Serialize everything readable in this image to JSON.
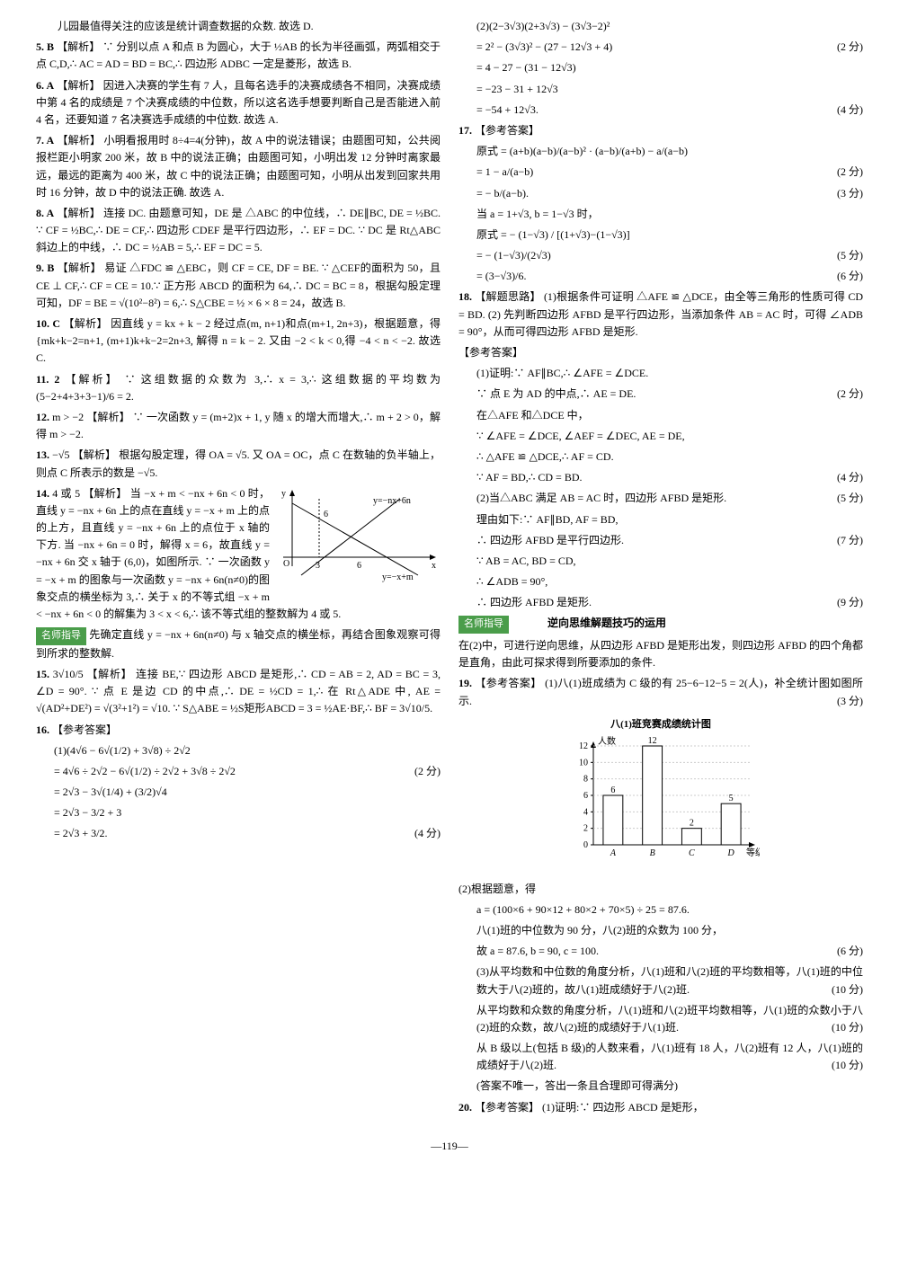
{
  "pageNumber": "—119—",
  "left": {
    "intro": "儿园最值得关注的应该是统计调查数据的众数. 故选 D.",
    "q5": {
      "num": "5. B",
      "label": "【解析】",
      "text": "∵ 分别以点 A 和点 B 为圆心，大于 ½AB 的长为半径画弧，两弧相交于点 C,D,∴ AC = AD = BD = BC,∴ 四边形 ADBC 一定是菱形，故选 B."
    },
    "q6": {
      "num": "6. A",
      "label": "【解析】",
      "text": "因进入决赛的学生有 7 人，且每名选手的决赛成绩各不相同，决赛成绩中第 4 名的成绩是 7 个决赛成绩的中位数，所以这名选手想要判断自己是否能进入前 4 名，还要知道 7 名决赛选手成绩的中位数. 故选 A."
    },
    "q7": {
      "num": "7. A",
      "label": "【解析】",
      "text": "小明看报用时 8÷4=4(分钟)，故 A 中的说法错误；由题图可知，公共阅报栏距小明家 200 米，故 B 中的说法正确；由题图可知，小明出发 12 分钟时离家最远，最远的距离为 400 米，故 C 中的说法正确；由题图可知，小明从出发到回家共用时 16 分钟，故 D 中的说法正确. 故选 A."
    },
    "q8": {
      "num": "8. A",
      "label": "【解析】",
      "text": "连接 DC. 由题意可知，DE 是 △ABC 的中位线，∴ DE∥BC, DE = ½BC. ∵ CF = ½BC,∴ DE = CF,∴ 四边形 CDEF 是平行四边形，∴ EF = DC. ∵ DC 是 Rt△ABC 斜边上的中线，∴ DC = ½AB = 5,∴ EF = DC = 5."
    },
    "q9": {
      "num": "9. B",
      "label": "【解析】",
      "text": "易证 △FDC ≌ △EBC，则 CF = CE, DF = BE. ∵ △CEF的面积为 50，且 CE ⊥ CF,∴ CF = CE = 10.∵ 正方形 ABCD 的面积为 64,∴ DC = BC = 8，根据勾股定理可知，DF = BE = √(10²−8²) = 6,∴ S△CBE = ½ × 6 × 8 = 24，故选 B."
    },
    "q10": {
      "num": "10. C",
      "label": "【解析】",
      "text": "因直线 y = kx + k − 2 经过点(m, n+1)和点(m+1, 2n+3)，根据题意，得 {mk+k−2=n+1, (m+1)k+k−2=2n+3, 解得 n = k − 2. 又由 −2 < k < 0,得 −4 < n < −2. 故选 C."
    },
    "q11": {
      "num": "11. 2",
      "label": "【解析】",
      "text": "∵ 这组数据的众数为 3,∴ x = 3,∴ 这组数据的平均数为 (5−2+4+3+3−1)/6 = 2."
    },
    "q12": {
      "num": "12.",
      "text": "m > −2 【解析】 ∵ 一次函数 y = (m+2)x + 1, y 随 x 的增大而增大,∴ m + 2 > 0，解得 m > −2."
    },
    "q13": {
      "num": "13.",
      "text": "−√5 【解析】 根据勾股定理，得 OA = √5. 又 OA = OC，点 C 在数轴的负半轴上，则点 C 所表示的数是 −√5."
    },
    "q14": {
      "num": "14.",
      "text": "4 或 5 【解析】 当 −x + m < −nx + 6n < 0 时，直线 y = −nx + 6n 上的点在直线 y = −x + m 上的点的上方，且直线 y = −nx + 6n 上的点位于 x 轴的下方. 当 −nx + 6n = 0 时，解得 x = 6，故直线 y = −nx + 6n 交 x 轴于 (6,0)，如图所示. ∵ 一次函数 y = −x + m 的图象与一次函数 y = −nx + 6n(n≠0)的图象交点的横坐标为 3,∴ 关于 x 的不等式组 −x + m < −nx + 6n < 0 的解集为 3 < x < 6,∴ 该不等式组的整数解为 4 或 5.",
      "graph": {
        "labels": {
          "y1": "y=−nx+6n",
          "y2": "y=−x+m",
          "p1": "3",
          "p2": "6",
          "ox": "x",
          "oy": "y",
          "o": "O"
        }
      }
    },
    "guide14": {
      "label": "名师指导",
      "text": "先确定直线 y = −nx + 6n(n≠0) 与 x 轴交点的横坐标，再结合图象观察可得到所求的整数解."
    },
    "q15": {
      "num": "15.",
      "ans": "3√10/5",
      "label": "【解析】",
      "text": "连接 BE,∵ 四边形 ABCD 是矩形,∴ CD = AB = 2, AD = BC = 3, ∠D = 90°. ∵ 点 E 是边 CD 的中点,∴ DE = ½CD = 1,∴ 在 Rt△ADE 中, AE = √(AD²+DE²) = √(3²+1²) = √10. ∵ S△ABE = ½S矩形ABCD = 3 = ½AE·BF,∴ BF = 3√10/5."
    },
    "q16": {
      "num": "16.",
      "label": "【参考答案】",
      "lines": [
        {
          "t": "(1)(4√6 − 6√(1/2) + 3√8) ÷ 2√2",
          "s": ""
        },
        {
          "t": "= 4√6 ÷ 2√2 − 6√(1/2) ÷ 2√2 + 3√8 ÷ 2√2",
          "s": "(2 分)"
        },
        {
          "t": "= 2√3 − 3√(1/4) + (3/2)√4",
          "s": ""
        },
        {
          "t": "= 2√3 − 3/2 + 3",
          "s": ""
        },
        {
          "t": "= 2√3 + 3/2.",
          "s": "(4 分)"
        }
      ]
    }
  },
  "right": {
    "q16b": {
      "lines": [
        {
          "t": "(2)(2−3√3)(2+3√3) − (3√3−2)²",
          "s": ""
        },
        {
          "t": "= 2² − (3√3)² − (27 − 12√3 + 4)",
          "s": "(2 分)"
        },
        {
          "t": "= 4 − 27 − (31 − 12√3)",
          "s": ""
        },
        {
          "t": "= −23 − 31 + 12√3",
          "s": ""
        },
        {
          "t": "= −54 + 12√3.",
          "s": "(4 分)"
        }
      ]
    },
    "q17": {
      "num": "17.",
      "label": "【参考答案】",
      "lines": [
        {
          "t": "原式 = (a+b)(a−b)/(a−b)² · (a−b)/(a+b) − a/(a−b)",
          "s": ""
        },
        {
          "t": "= 1 − a/(a−b)",
          "s": "(2 分)"
        },
        {
          "t": "= − b/(a−b).",
          "s": "(3 分)"
        },
        {
          "t": "当 a = 1+√3, b = 1−√3 时，",
          "s": ""
        },
        {
          "t": "原式 = − (1−√3) / [(1+√3)−(1−√3)]",
          "s": ""
        },
        {
          "t": "= − (1−√3)/(2√3)",
          "s": "(5 分)"
        },
        {
          "t": "= (3−√3)/6.",
          "s": "(6 分)"
        }
      ]
    },
    "q18": {
      "num": "18.",
      "label": "【解题思路】",
      "intro": "(1)根据条件可证明 △AFE ≌ △DCE，由全等三角形的性质可得 CD = BD. (2) 先判断四边形 AFBD 是平行四边形，当添加条件 AB = AC 时，可得 ∠ADB = 90°，从而可得四边形 AFBD 是矩形.",
      "ans": "【参考答案】",
      "lines": [
        {
          "t": "(1)证明:∵ AF∥BC,∴ ∠AFE = ∠DCE.",
          "s": ""
        },
        {
          "t": "∵ 点 E 为 AD 的中点,∴ AE = DE.",
          "s": "(2 分)"
        },
        {
          "t": "在△AFE 和△DCE 中，",
          "s": ""
        },
        {
          "t": "∵ ∠AFE = ∠DCE, ∠AEF = ∠DEC, AE = DE,",
          "s": ""
        },
        {
          "t": "∴ △AFE ≌ △DCE,∴ AF = CD.",
          "s": ""
        },
        {
          "t": "∵ AF = BD,∴ CD = BD.",
          "s": "(4 分)"
        },
        {
          "t": "(2)当△ABC 满足 AB = AC 时，四边形 AFBD 是矩形.",
          "s": "(5 分)"
        },
        {
          "t": "理由如下:∵ AF∥BD, AF = BD,",
          "s": ""
        },
        {
          "t": "∴ 四边形 AFBD 是平行四边形.",
          "s": "(7 分)"
        },
        {
          "t": "∵ AB = AC, BD = CD,",
          "s": ""
        },
        {
          "t": "∴ ∠ADB = 90°,",
          "s": ""
        },
        {
          "t": "∴ 四边形 AFBD 是矩形.",
          "s": "(9 分)"
        }
      ]
    },
    "guide18": {
      "label": "名师指导",
      "title": "逆向思维解题技巧的运用",
      "text": "在(2)中，可进行逆向思维，从四边形 AFBD 是矩形出发，则四边形 AFBD 的四个角都是直角，由此可探求得到所要添加的条件."
    },
    "q19": {
      "num": "19.",
      "label": "【参考答案】",
      "p1": {
        "t": "(1)八(1)班成绩为 C 级的有 25−6−12−5 = 2(人)，补全统计图如图所示.",
        "s": "(3 分)"
      },
      "chart": {
        "title": "八(1)班竞赛成绩统计图",
        "ylabel": "人数",
        "xlabel": "等级",
        "cats": [
          "A",
          "B",
          "C",
          "D"
        ],
        "vals": [
          6,
          12,
          2,
          5
        ],
        "labels": [
          "6",
          "12",
          "2",
          "5"
        ],
        "ymax": 12,
        "ytick": 2,
        "barColor": "#ffffff",
        "borderColor": "#000000",
        "gridColor": "#cccccc",
        "bg": "#ffffff"
      },
      "p2": "(2)根据题意，得",
      "lines": [
        {
          "t": "a = (100×6 + 90×12 + 80×2 + 70×5) ÷ 25 = 87.6.",
          "s": ""
        },
        {
          "t": "八(1)班的中位数为 90 分，八(2)班的众数为 100 分，",
          "s": ""
        },
        {
          "t": "故 a = 87.6, b = 90, c = 100.",
          "s": "(6 分)"
        },
        {
          "t": "(3)从平均数和中位数的角度分析，八(1)班和八(2)班的平均数相等，八(1)班的中位数大于八(2)班的，故八(1)班成绩好于八(2)班.",
          "s": "(10 分)"
        },
        {
          "t": "从平均数和众数的角度分析，八(1)班和八(2)班平均数相等，八(1)班的众数小于八(2)班的众数，故八(2)班的成绩好于八(1)班.",
          "s": "(10 分)"
        },
        {
          "t": "从 B 级以上(包括 B 级)的人数来看，八(1)班有 18 人，八(2)班有 12 人，八(1)班的成绩好于八(2)班.",
          "s": "(10 分)"
        },
        {
          "t": "(答案不唯一，答出一条且合理即可得满分)",
          "s": ""
        }
      ]
    },
    "q20": {
      "num": "20.",
      "label": "【参考答案】",
      "text": "(1)证明:∵ 四边形 ABCD 是矩形，"
    }
  }
}
